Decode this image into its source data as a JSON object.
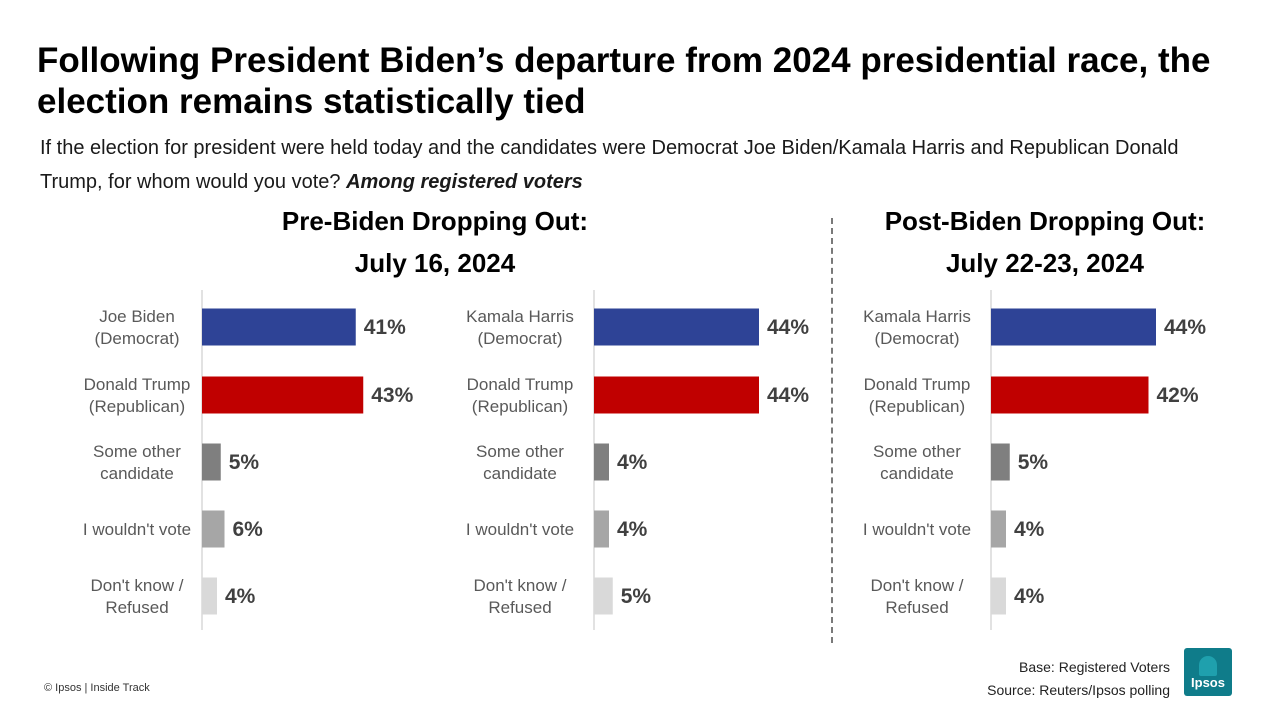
{
  "title": "Following President Biden’s departure from 2024 presidential race, the election remains statistically tied",
  "subtitle": {
    "question": "If the election for president were held today and the candidates were Democrat Joe Biden/Kamala Harris and Republican Donald Trump, for whom would you vote?",
    "emphasis": "Among registered voters"
  },
  "sections": {
    "pre": {
      "line1": "Pre-Biden Dropping Out:",
      "line2": "July 16, 2024"
    },
    "post": {
      "line1": "Post-Biden Dropping Out:",
      "line2": "July 22-23, 2024"
    }
  },
  "colors": {
    "democrat": "#2e4396",
    "republican": "#c00000",
    "other": "#7f7f7f",
    "wouldnt_vote": "#a6a6a6",
    "dont_know": "#d9d9d9",
    "axis": "#d9d9d9",
    "label_text": "#595959",
    "value_text": "#404040"
  },
  "chart_data": [
    {
      "type": "bar",
      "orientation": "horizontal",
      "section": "Pre-Biden Dropping Out: July 16, 2024",
      "categories": [
        [
          "Joe Biden",
          "(Democrat)"
        ],
        [
          "Donald Trump",
          "(Republican)"
        ],
        [
          "Some other",
          "candidate"
        ],
        [
          "I wouldn't vote"
        ],
        [
          "Don't know /",
          "Refused"
        ]
      ],
      "values": [
        41,
        43,
        5,
        6,
        4
      ],
      "value_labels": [
        "41%",
        "43%",
        "5%",
        "6%",
        "4%"
      ],
      "color_keys": [
        "democrat",
        "republican",
        "other",
        "wouldnt_vote",
        "dont_know"
      ]
    },
    {
      "type": "bar",
      "orientation": "horizontal",
      "section": "Pre-Biden Dropping Out: July 16, 2024",
      "categories": [
        [
          "Kamala Harris",
          "(Democrat)"
        ],
        [
          "Donald Trump",
          "(Republican)"
        ],
        [
          "Some other",
          "candidate"
        ],
        [
          "I wouldn't vote"
        ],
        [
          "Don't know /",
          "Refused"
        ]
      ],
      "values": [
        44,
        44,
        4,
        4,
        5
      ],
      "value_labels": [
        "44%",
        "44%",
        "4%",
        "4%",
        "5%"
      ],
      "color_keys": [
        "democrat",
        "republican",
        "other",
        "wouldnt_vote",
        "dont_know"
      ]
    },
    {
      "type": "bar",
      "orientation": "horizontal",
      "section": "Post-Biden Dropping Out: July 22-23, 2024",
      "categories": [
        [
          "Kamala Harris",
          "(Democrat)"
        ],
        [
          "Donald Trump",
          "(Republican)"
        ],
        [
          "Some other",
          "candidate"
        ],
        [
          "I wouldn't vote"
        ],
        [
          "Don't know /",
          "Refused"
        ]
      ],
      "values": [
        44,
        42,
        5,
        4,
        4
      ],
      "value_labels": [
        "44%",
        "42%",
        "5%",
        "4%",
        "4%"
      ],
      "color_keys": [
        "democrat",
        "republican",
        "other",
        "wouldnt_vote",
        "dont_know"
      ]
    }
  ],
  "footer": {
    "copyright": "© Ipsos | Inside Track",
    "base": "Base: Registered Voters",
    "source": "Source: Reuters/Ipsos polling",
    "logo_text": "Ipsos"
  }
}
